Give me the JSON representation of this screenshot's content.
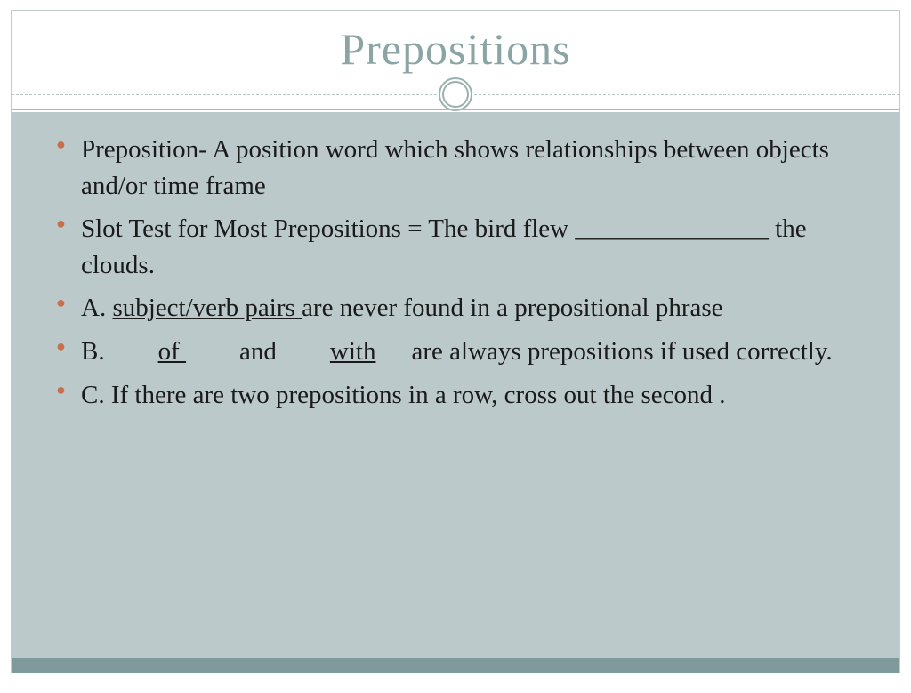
{
  "slide": {
    "title": "Prepositions",
    "title_color": "#8ba5a5",
    "title_fontsize": 50,
    "background_color": "#ffffff",
    "content_background": "#bbc9cb",
    "footer_color": "#7f9a9a",
    "bullet_color": "#c96f4a",
    "text_color": "#1a1a1a",
    "body_fontsize": 29,
    "ornament_color": "#9bb0b0",
    "bullets": [
      {
        "text": "Preposition-  A position word which shows relationships between objects and/or time frame"
      },
      {
        "prefix": "Slot Test for Most Prepositions =  The bird flew ",
        "blank": "_______________",
        "suffix": " the clouds."
      },
      {
        "prefix": "A.  ",
        "underlined": "subject/verb pairs ",
        "suffix": "are never found in a prepositional phrase"
      },
      {
        "prefix": "B.",
        "u1": "of ",
        "mid": "and",
        "u2": "with",
        "suffix": "are always prepositions if used correctly."
      },
      {
        "text": "C.  If there are  two   prepositions in a row, cross out the second ."
      }
    ]
  }
}
